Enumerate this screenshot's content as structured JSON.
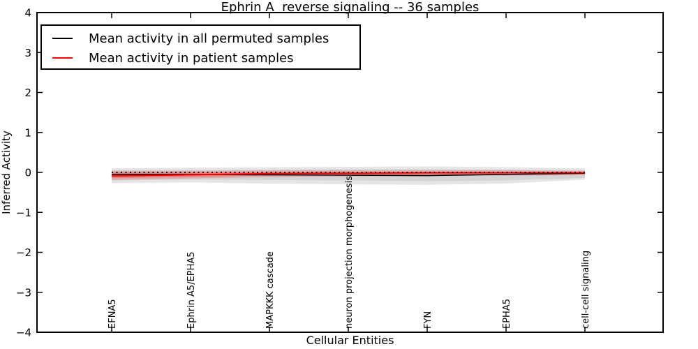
{
  "figure": {
    "background": "#ffffff",
    "frame_color": "#000000"
  },
  "chart_data": {
    "type": "line",
    "title": "Ephrin A  reverse signaling -- 36 samples",
    "xlabel": "Cellular Entities",
    "ylabel": "Inferred Activity",
    "ylim": [
      -4,
      4
    ],
    "yticks": [
      -4,
      -3,
      -2,
      -1,
      0,
      1,
      2,
      3,
      4
    ],
    "ytick_labels": [
      "−4",
      "−3",
      "−2",
      "−1",
      "0",
      "1",
      "2",
      "3",
      "4"
    ],
    "grid": false,
    "legend_position": "upper left",
    "categories": [
      "EFNA5",
      "Ephrin A5/EPHA5",
      "MAPKKK cascade",
      "neuron projection morphogenesis",
      "FYN",
      "EPHA5",
      "cell-cell signaling"
    ],
    "series": [
      {
        "name": "Mean activity in all permuted samples",
        "color": "#000000",
        "style": "solid",
        "width": 1.6,
        "values": [
          -0.05,
          -0.05,
          -0.06,
          -0.07,
          -0.08,
          -0.05,
          -0.02
        ]
      },
      {
        "name": "Mean activity in patient samples",
        "color": "#ff0000",
        "style": "solid",
        "width": 1.8,
        "values": [
          -0.09,
          -0.06,
          -0.03,
          -0.02,
          -0.01,
          -0.01,
          -0.01
        ]
      },
      {
        "name": "unlabeled dotted zero reference",
        "color": "#000000",
        "style": "dotted",
        "width": 1.8,
        "values": [
          0,
          0,
          0,
          0,
          0,
          0,
          0
        ]
      }
    ],
    "bands": [
      {
        "name": "permuted-confidence-outer",
        "color": "#000000",
        "opacity": 0.1,
        "upper": [
          0.1,
          0.12,
          0.13,
          0.14,
          0.15,
          0.13,
          0.1
        ],
        "lower": [
          -0.27,
          -0.25,
          -0.28,
          -0.3,
          -0.31,
          -0.28,
          -0.18
        ]
      },
      {
        "name": "permuted-confidence-inner",
        "color": "#000000",
        "opacity": 0.07,
        "upper": [
          0.06,
          0.06,
          0.07,
          0.08,
          0.08,
          0.07,
          0.06
        ],
        "lower": [
          -0.2,
          -0.18,
          -0.19,
          -0.2,
          -0.22,
          -0.2,
          -0.14
        ]
      },
      {
        "name": "patient-confidence-outer",
        "color": "#ff0000",
        "opacity": 0.18,
        "upper": [
          0.04,
          0.04,
          0.05,
          0.05,
          0.05,
          0.05,
          0.04
        ],
        "lower": [
          -0.19,
          -0.15,
          -0.12,
          -0.1,
          -0.09,
          -0.08,
          -0.07
        ]
      },
      {
        "name": "patient-confidence-inner",
        "color": "#ff0000",
        "opacity": 0.28,
        "upper": [
          0.0,
          0.0,
          0.01,
          0.01,
          0.02,
          0.02,
          0.01
        ],
        "lower": [
          -0.14,
          -0.11,
          -0.08,
          -0.06,
          -0.05,
          -0.05,
          -0.04
        ]
      }
    ]
  },
  "legend": {
    "entries": [
      {
        "label": "Mean activity in all permuted samples",
        "color": "#000000"
      },
      {
        "label": "Mean activity in patient samples",
        "color": "#ff0000"
      }
    ]
  }
}
